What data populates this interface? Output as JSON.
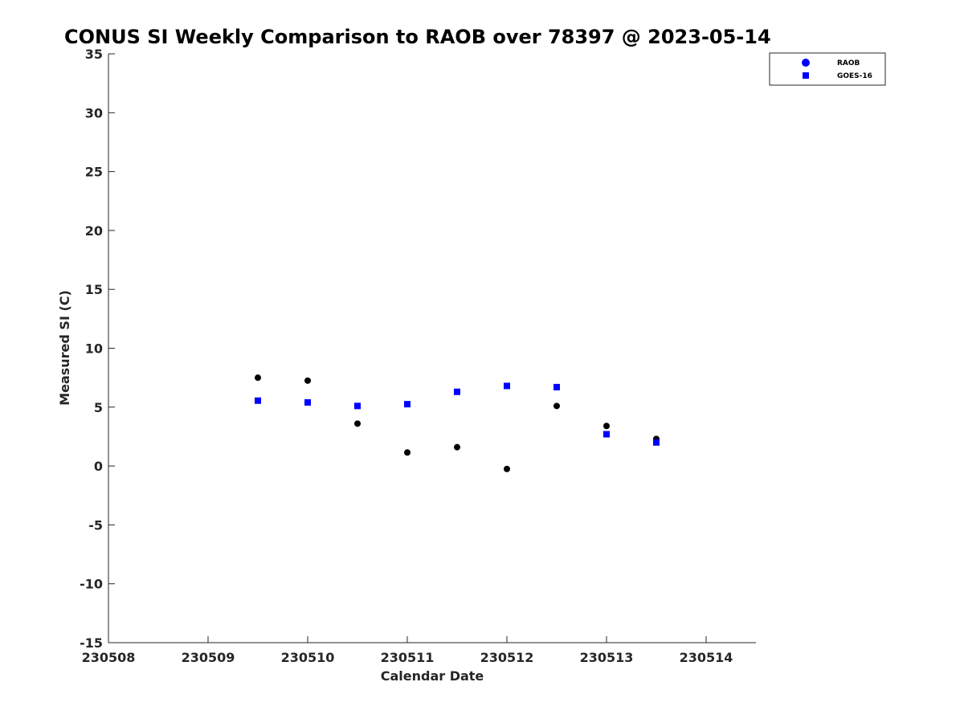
{
  "chart_data": {
    "type": "scatter",
    "title": "CONUS SI Weekly Comparison to RAOB over 78397 @ 2023-05-14",
    "xlabel": "Calendar Date",
    "ylabel": "Measured SI (C)",
    "xlim": [
      230508,
      230514.5
    ],
    "ylim": [
      -15,
      35
    ],
    "x_ticks": [
      230508,
      230509,
      230510,
      230511,
      230512,
      230513,
      230514
    ],
    "x_tick_labels": [
      "230508",
      "230509",
      "230510",
      "230511",
      "230512",
      "230513",
      "230514"
    ],
    "y_ticks": [
      -15,
      -10,
      -5,
      0,
      5,
      10,
      15,
      20,
      25,
      30,
      35
    ],
    "y_tick_labels": [
      "-15",
      "-10",
      "-5",
      "0",
      "5",
      "10",
      "15",
      "20",
      "25",
      "30",
      "35"
    ],
    "grid": false,
    "legend_position": "top-right",
    "series": [
      {
        "name": "RAOB",
        "marker": "circle",
        "color": "#000000",
        "legend_color": "#0000ff",
        "x": [
          230509.5,
          230510,
          230510.5,
          230511,
          230511.5,
          230512,
          230512.5,
          230513,
          230513.5
        ],
        "y": [
          7.5,
          7.25,
          3.6,
          1.15,
          1.6,
          -0.25,
          5.1,
          3.4,
          2.3
        ]
      },
      {
        "name": "GOES-16",
        "marker": "square",
        "color": "#0000ff",
        "legend_color": "#0000ff",
        "x": [
          230509.5,
          230510,
          230510.5,
          230511,
          230511.5,
          230512,
          230512.5,
          230513,
          230513.5
        ],
        "y": [
          5.55,
          5.4,
          5.1,
          5.25,
          6.3,
          6.8,
          6.7,
          2.7,
          2.0
        ]
      }
    ]
  }
}
